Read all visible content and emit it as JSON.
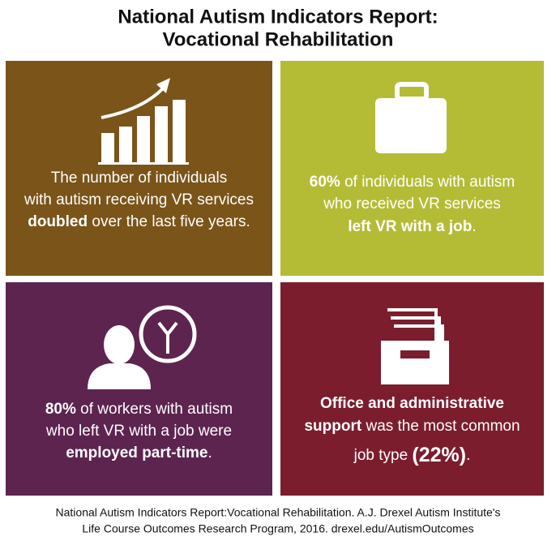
{
  "header": {
    "title_lines": [
      "National Autism Indicators Report:",
      "Vocational Rehabilitation"
    ]
  },
  "panels": [
    {
      "color": "#7a5419",
      "lines": [
        [
          {
            "text": "The number of individuals"
          }
        ],
        [
          {
            "text": "with autism receiving VR services"
          }
        ],
        [
          {
            "text": "doubled",
            "style": "bold"
          },
          {
            "text": " over the last five years."
          }
        ]
      ]
    },
    {
      "color": "#b4bc35",
      "lines": [
        [
          {
            "text": "60%",
            "style": "bold"
          },
          {
            "text": " of individuals with autism"
          }
        ],
        [
          {
            "text": "who received VR services"
          }
        ],
        [
          {
            "text": "left VR with a job",
            "style": "bold"
          },
          {
            "text": "."
          }
        ]
      ]
    },
    {
      "color": "#5d2450",
      "lines": [
        [
          {
            "text": "80%",
            "style": "bold"
          },
          {
            "text": " of workers with autism"
          }
        ],
        [
          {
            "text": "who left VR with a job were"
          }
        ],
        [
          {
            "text": "employed part-time",
            "style": "bold"
          },
          {
            "text": "."
          }
        ]
      ]
    },
    {
      "color": "#7b1d2d",
      "lines": [
        [
          {
            "text": "Office and administrative",
            "style": "bold"
          }
        ],
        [
          {
            "text": "support",
            "style": "bold"
          },
          {
            "text": " was the most common"
          }
        ],
        [
          {
            "text": "job type "
          },
          {
            "text": "(22%)",
            "style": "big"
          },
          {
            "text": "."
          }
        ]
      ]
    }
  ],
  "footer": {
    "lines": [
      "National Autism Indicators Report:Vocational Rehabilitation. A.J. Drexel Autism Institute's",
      "Life Course Outcomes Research Program, 2016. drexel.edu/AutismOutcomes"
    ]
  }
}
